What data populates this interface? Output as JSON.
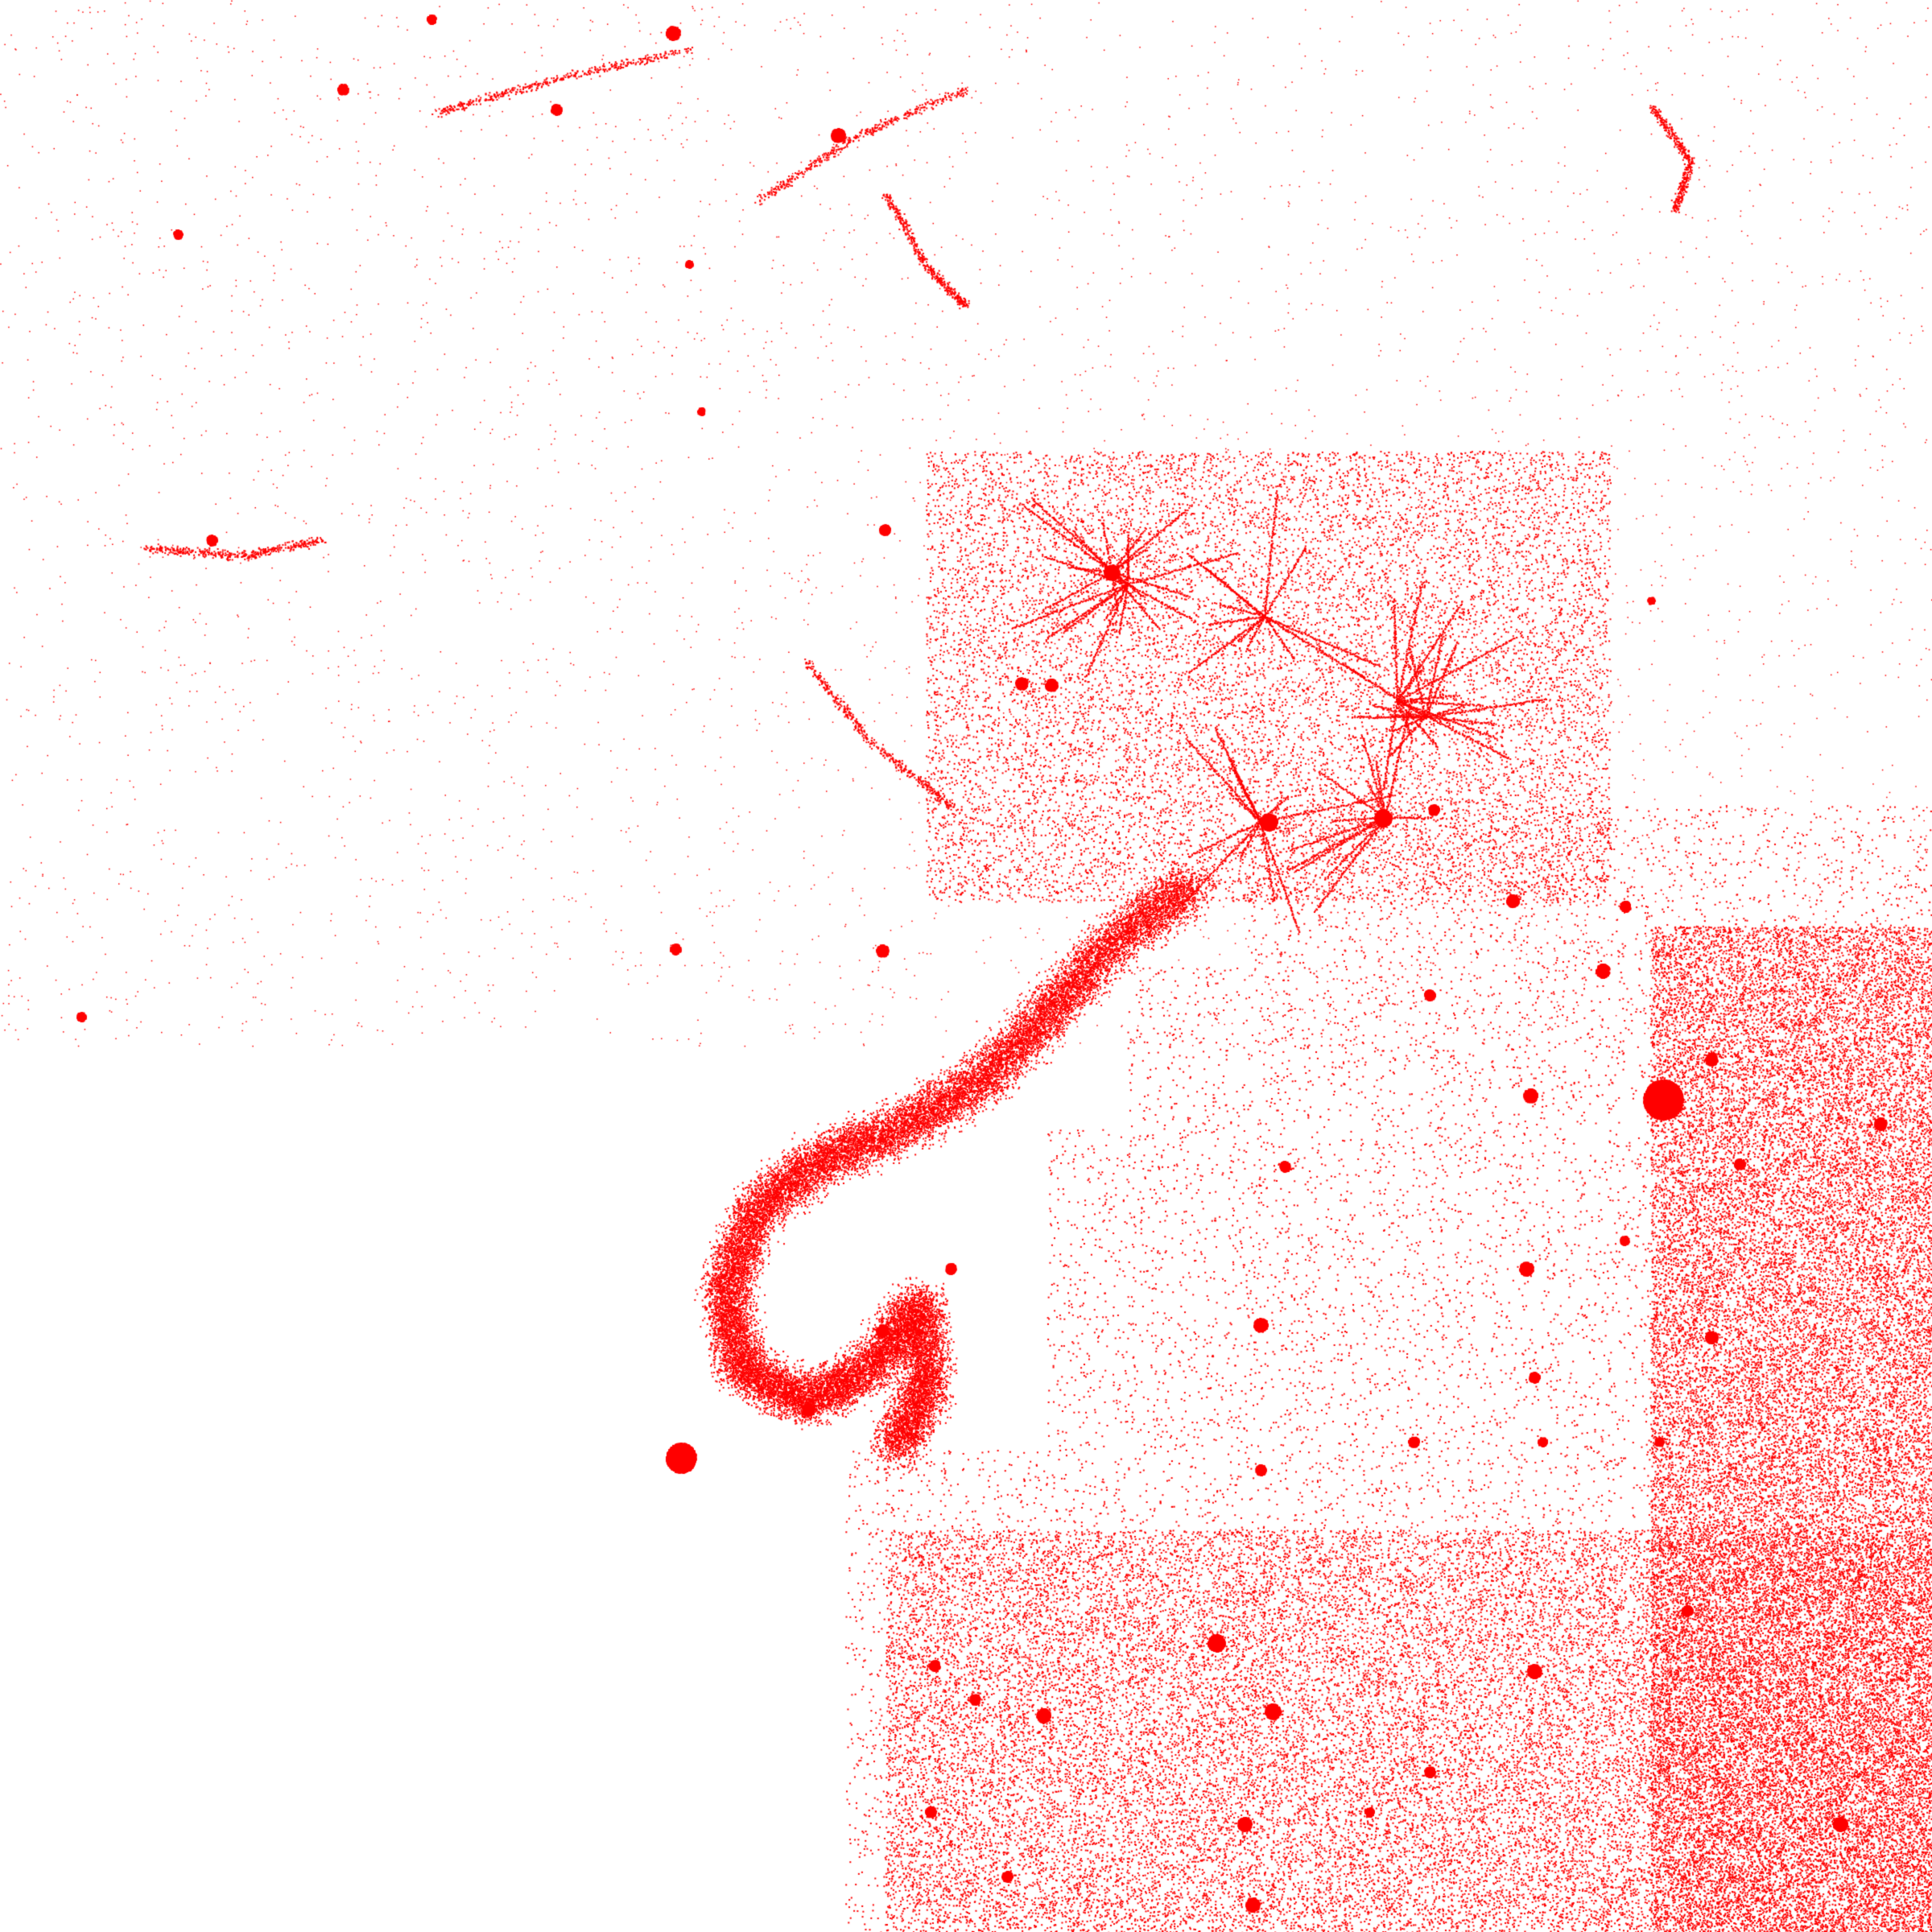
{
  "map": {
    "background_color": "#ffffff",
    "point_color": "#ff0000",
    "style": "dot density settlement map",
    "labels": []
  }
}
